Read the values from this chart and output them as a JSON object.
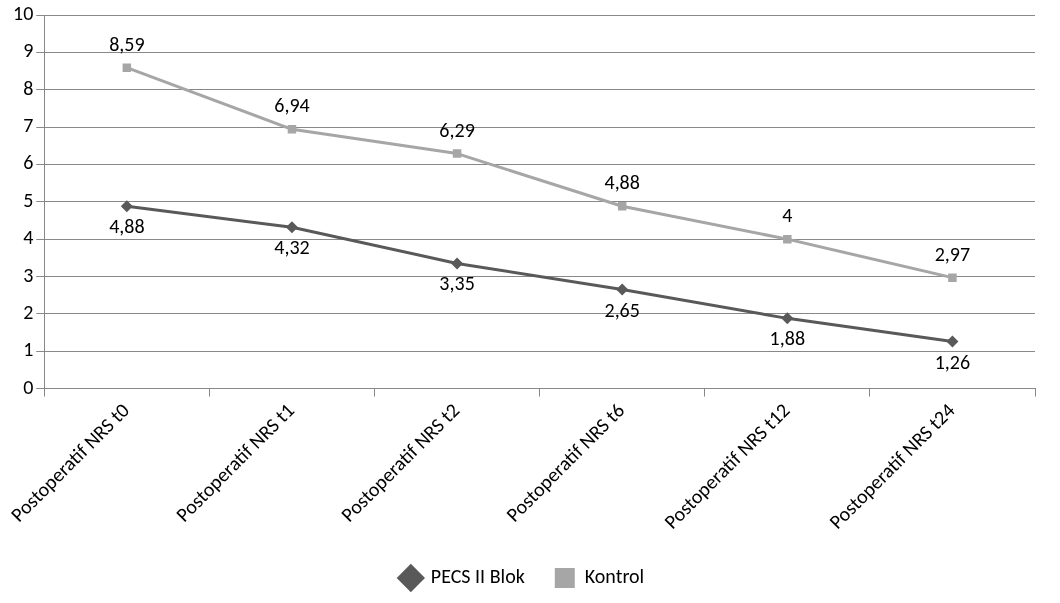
{
  "chart_data": {
    "type": "line",
    "categories": [
      "Postoperatif NRS t0",
      "Postoperatif NRS t1",
      "Postoperatif NRS t2",
      "Postoperatif NRS t6",
      "Postoperatif NRS t12",
      "Postoperatif NRS t24"
    ],
    "series": [
      {
        "name": "PECS II Blok",
        "color": "#595959",
        "marker": "diamond",
        "values": [
          4.88,
          4.32,
          3.35,
          2.65,
          1.88,
          1.26
        ],
        "value_labels": [
          "4,88",
          "4,32",
          "3,35",
          "2,65",
          "1,88",
          "1,26"
        ]
      },
      {
        "name": "Kontrol",
        "color": "#a6a6a6",
        "marker": "square",
        "values": [
          8.59,
          6.94,
          6.29,
          4.88,
          4,
          2.97
        ],
        "value_labels": [
          "8,59",
          "6,94",
          "6,29",
          "4,88",
          "4",
          "2,97"
        ]
      }
    ],
    "ylim": [
      0,
      10
    ],
    "yticks": [
      0,
      1,
      2,
      3,
      4,
      5,
      6,
      7,
      8,
      9,
      10
    ],
    "grid": "y",
    "legend": "bottom",
    "line_style": "solid"
  }
}
